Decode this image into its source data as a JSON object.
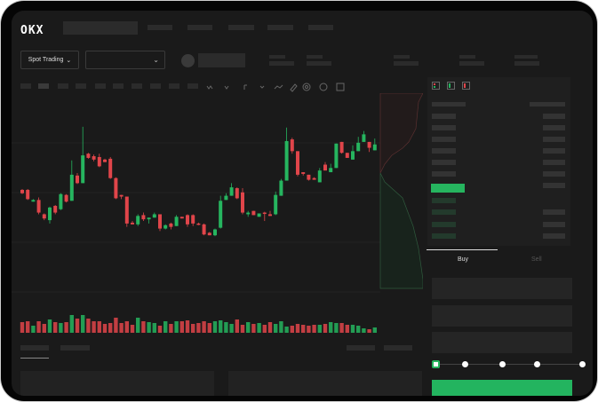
{
  "header": {
    "logo": "OKX"
  },
  "toolbar": {
    "spot_trading_label": "Spot Trading",
    "icons": [
      "chevron-down-icon",
      "indicator-icon",
      "drawing-icon",
      "settings-icon",
      "fullscreen-icon"
    ]
  },
  "trade": {
    "tabs": [
      "Buy",
      "Sell"
    ],
    "active_tab": "Buy",
    "leverage_slider_value": 0
  },
  "colors": {
    "up": "#26b55f",
    "down": "#e0454a",
    "background": "#1a1a1a",
    "frame": "#050505"
  },
  "chart_data": {
    "type": "candlestick",
    "candles_ohlc": [
      [
        97,
        93,
        98,
        92
      ],
      [
        97,
        86,
        98,
        85
      ],
      [
        83,
        85,
        86,
        83
      ],
      [
        85,
        70,
        88,
        68
      ],
      [
        68,
        63,
        69,
        61
      ],
      [
        61,
        76,
        77,
        57
      ],
      [
        78,
        70,
        79,
        68
      ],
      [
        74,
        92,
        93,
        73
      ],
      [
        91,
        83,
        92,
        82
      ],
      [
        84,
        115,
        132,
        84
      ],
      [
        114,
        105,
        117,
        104
      ],
      [
        105,
        138,
        172,
        105
      ],
      [
        140,
        135,
        141,
        134
      ],
      [
        137,
        133,
        139,
        131
      ],
      [
        136,
        125,
        140,
        124
      ],
      [
        133,
        130,
        134,
        130
      ],
      [
        134,
        111,
        136,
        110
      ],
      [
        111,
        87,
        112,
        86
      ],
      [
        91,
        89,
        91,
        86
      ],
      [
        89,
        57,
        89,
        53
      ],
      [
        58,
        56,
        60,
        56
      ],
      [
        56,
        66,
        68,
        54
      ],
      [
        67,
        62,
        70,
        60
      ],
      [
        62,
        64,
        64,
        57
      ],
      [
        64,
        68,
        70,
        64
      ],
      [
        68,
        51,
        68,
        48
      ],
      [
        51,
        55,
        56,
        50
      ],
      [
        57,
        53,
        58,
        50
      ],
      [
        54,
        65,
        67,
        54
      ],
      [
        65,
        63,
        65,
        63
      ],
      [
        67,
        56,
        68,
        53
      ],
      [
        67,
        57,
        68,
        54
      ],
      [
        57,
        56,
        58,
        55
      ],
      [
        56,
        44,
        57,
        43
      ],
      [
        46,
        43,
        47,
        43
      ],
      [
        43,
        50,
        51,
        42
      ],
      [
        52,
        84,
        90,
        51
      ],
      [
        85,
        90,
        93,
        85
      ],
      [
        90,
        100,
        105,
        90
      ],
      [
        99,
        87,
        100,
        86
      ],
      [
        94,
        70,
        99,
        68
      ],
      [
        68,
        70,
        72,
        65
      ],
      [
        72,
        67,
        72,
        67
      ],
      [
        65,
        69,
        69,
        65
      ],
      [
        70,
        69,
        71,
        60
      ],
      [
        68,
        66,
        72,
        66
      ],
      [
        68,
        91,
        95,
        67
      ],
      [
        90,
        108,
        110,
        90
      ],
      [
        108,
        155,
        171,
        108
      ],
      [
        157,
        143,
        159,
        140
      ],
      [
        143,
        115,
        143,
        113
      ],
      [
        118,
        116,
        118,
        114
      ],
      [
        115,
        109,
        115,
        108
      ],
      [
        111,
        109,
        112,
        109
      ],
      [
        106,
        120,
        123,
        106
      ],
      [
        127,
        120,
        130,
        120
      ],
      [
        118,
        123,
        128,
        118
      ],
      [
        123,
        152,
        152,
        123
      ],
      [
        154,
        141,
        154,
        140
      ],
      [
        141,
        135,
        141,
        135
      ],
      [
        133,
        143,
        150,
        133
      ],
      [
        143,
        153,
        160,
        143
      ],
      [
        154,
        163,
        167,
        154
      ],
      [
        154,
        147,
        154,
        142
      ],
      [
        144,
        151,
        158,
        144
      ]
    ],
    "volume": [
      12,
      13,
      8,
      13,
      10,
      15,
      12,
      11,
      12,
      20,
      16,
      20,
      16,
      13,
      13,
      10,
      11,
      17,
      11,
      13,
      9,
      17,
      13,
      12,
      11,
      8,
      13,
      10,
      13,
      13,
      14,
      10,
      11,
      13,
      11,
      13,
      14,
      12,
      10,
      15,
      9,
      12,
      10,
      11,
      9,
      12,
      10,
      13,
      7,
      8,
      10,
      9,
      8,
      9,
      9,
      10,
      12,
      11,
      11,
      9,
      9,
      8,
      5,
      4,
      6
    ],
    "grid": true
  }
}
